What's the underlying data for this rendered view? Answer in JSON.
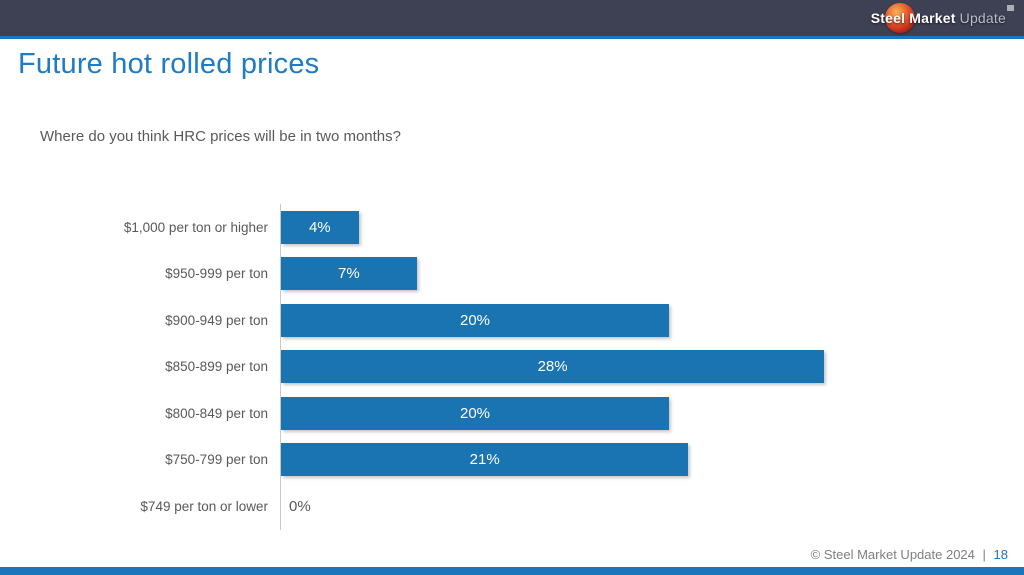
{
  "header": {
    "brand_bold": "Steel Market",
    "brand_light": "Update"
  },
  "slide": {
    "title": "Future hot rolled prices",
    "question": "Where do you think HRC prices will be in two months?"
  },
  "chart_data": {
    "type": "bar",
    "orientation": "horizontal",
    "title": "Where do you think HRC prices will be in two months?",
    "categories": [
      "$1,000 per ton or higher",
      "$950-999 per ton",
      "$900-949 per ton",
      "$850-899 per ton",
      "$800-849 per ton",
      "$750-799 per ton",
      "$749 per ton or lower"
    ],
    "values": [
      4,
      7,
      20,
      28,
      20,
      21,
      0
    ],
    "value_labels": [
      "4%",
      "7%",
      "20%",
      "28%",
      "20%",
      "21%",
      "0%"
    ],
    "xlim": [
      0,
      30
    ],
    "xlabel": "",
    "ylabel": "",
    "grid": false,
    "legend": false,
    "bar_color": "#1b74b2"
  },
  "footer": {
    "copyright": "© Steel Market Update 2024",
    "separator": "|",
    "page_number": "18"
  },
  "colors": {
    "title_blue": "#1e7bc4",
    "bar_blue": "#1b74b2",
    "header_bar": "#3e4154",
    "accent_strip": "#1b75bc"
  }
}
